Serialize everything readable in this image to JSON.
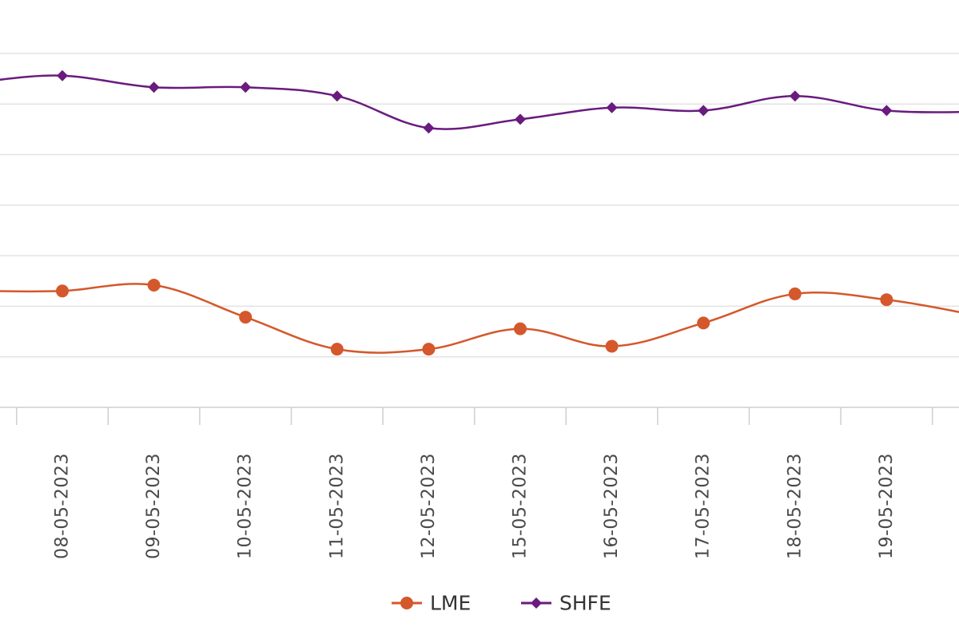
{
  "chart_data": {
    "type": "line",
    "x": [
      "08-05-2023",
      "09-05-2023",
      "10-05-2023",
      "11-05-2023",
      "12-05-2023",
      "15-05-2023",
      "16-05-2023",
      "17-05-2023",
      "18-05-2023",
      "19-05-2023"
    ],
    "series": [
      {
        "name": "LME",
        "color": "#d4582b",
        "marker": "circle",
        "values": [
          0.4,
          0.42,
          0.31,
          0.2,
          0.2,
          0.27,
          0.21,
          0.29,
          0.39,
          0.37
        ]
      },
      {
        "name": "SHFE",
        "color": "#6a1b7e",
        "marker": "diamond",
        "values": [
          1.14,
          1.1,
          1.1,
          1.07,
          0.96,
          0.99,
          1.03,
          1.02,
          1.07,
          1.02
        ]
      }
    ],
    "ylim": [
      0,
      1.4
    ],
    "grid": true,
    "legend": "bottom-center"
  }
}
